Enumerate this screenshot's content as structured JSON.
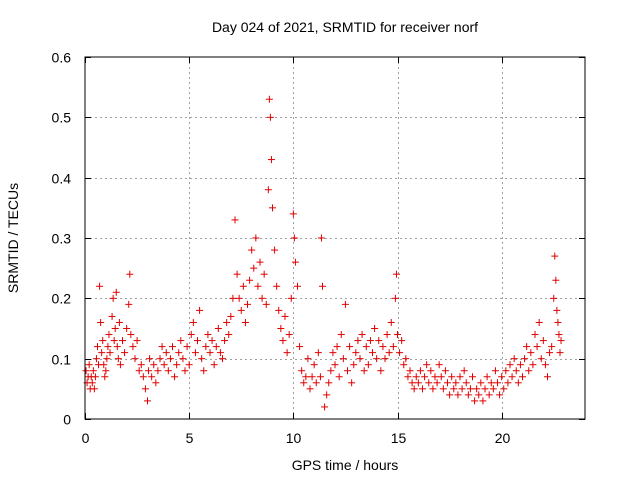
{
  "chart_data": {
    "type": "scatter",
    "title": "Day 024 of 2021, SRMTID for receiver norf",
    "xlabel": "GPS time / hours",
    "ylabel": "SRMTID / TECUs",
    "xlim": [
      0,
      24
    ],
    "ylim": [
      0,
      0.6
    ],
    "x_ticks": [
      0,
      5,
      10,
      15,
      20
    ],
    "x_tick_labels": [
      "0",
      "5",
      "10",
      "15",
      "20"
    ],
    "y_ticks": [
      0,
      0.1,
      0.2,
      0.3,
      0.4,
      0.5,
      0.6
    ],
    "y_tick_labels": [
      "0",
      "0.1",
      "0.2",
      "0.3",
      "0.4",
      "0.5",
      "0.6"
    ],
    "grid": true,
    "marker": "plus",
    "series": [
      {
        "name": "SRMTID",
        "color": "#e00000",
        "points": [
          [
            0.05,
            0.08
          ],
          [
            0.1,
            0.06
          ],
          [
            0.15,
            0.07
          ],
          [
            0.2,
            0.09
          ],
          [
            0.25,
            0.05
          ],
          [
            0.3,
            0.07
          ],
          [
            0.35,
            0.06
          ],
          [
            0.4,
            0.08
          ],
          [
            0.45,
            0.05
          ],
          [
            0.5,
            0.07
          ],
          [
            0.55,
            0.1
          ],
          [
            0.6,
            0.12
          ],
          [
            0.65,
            0.09
          ],
          [
            0.7,
            0.22
          ],
          [
            0.75,
            0.16
          ],
          [
            0.8,
            0.11
          ],
          [
            0.85,
            0.13
          ],
          [
            0.9,
            0.09
          ],
          [
            0.95,
            0.07
          ],
          [
            1.0,
            0.08
          ],
          [
            1.05,
            0.1
          ],
          [
            1.1,
            0.12
          ],
          [
            1.15,
            0.14
          ],
          [
            1.2,
            0.11
          ],
          [
            1.3,
            0.17
          ],
          [
            1.35,
            0.2
          ],
          [
            1.4,
            0.13
          ],
          [
            1.45,
            0.15
          ],
          [
            1.5,
            0.21
          ],
          [
            1.55,
            0.12
          ],
          [
            1.6,
            0.1
          ],
          [
            1.65,
            0.16
          ],
          [
            1.7,
            0.09
          ],
          [
            1.8,
            0.13
          ],
          [
            1.9,
            0.11
          ],
          [
            2.0,
            0.15
          ],
          [
            2.1,
            0.19
          ],
          [
            2.15,
            0.24
          ],
          [
            2.2,
            0.14
          ],
          [
            2.3,
            0.12
          ],
          [
            2.4,
            0.1
          ],
          [
            2.5,
            0.13
          ],
          [
            2.6,
            0.08
          ],
          [
            2.7,
            0.09
          ],
          [
            2.8,
            0.07
          ],
          [
            2.9,
            0.05
          ],
          [
            3.0,
            0.03
          ],
          [
            3.05,
            0.08
          ],
          [
            3.1,
            0.1
          ],
          [
            3.2,
            0.07
          ],
          [
            3.3,
            0.09
          ],
          [
            3.4,
            0.06
          ],
          [
            3.5,
            0.08
          ],
          [
            3.6,
            0.1
          ],
          [
            3.7,
            0.12
          ],
          [
            3.8,
            0.09
          ],
          [
            3.9,
            0.11
          ],
          [
            4.0,
            0.08
          ],
          [
            4.1,
            0.1
          ],
          [
            4.2,
            0.12
          ],
          [
            4.3,
            0.07
          ],
          [
            4.4,
            0.09
          ],
          [
            4.5,
            0.11
          ],
          [
            4.6,
            0.13
          ],
          [
            4.7,
            0.1
          ],
          [
            4.8,
            0.08
          ],
          [
            4.9,
            0.12
          ],
          [
            5.0,
            0.09
          ],
          [
            5.1,
            0.14
          ],
          [
            5.2,
            0.16
          ],
          [
            5.3,
            0.11
          ],
          [
            5.4,
            0.13
          ],
          [
            5.5,
            0.18
          ],
          [
            5.6,
            0.1
          ],
          [
            5.7,
            0.08
          ],
          [
            5.8,
            0.12
          ],
          [
            5.9,
            0.14
          ],
          [
            6.0,
            0.11
          ],
          [
            6.1,
            0.13
          ],
          [
            6.2,
            0.09
          ],
          [
            6.3,
            0.12
          ],
          [
            6.4,
            0.15
          ],
          [
            6.5,
            0.11
          ],
          [
            6.6,
            0.1
          ],
          [
            6.7,
            0.13
          ],
          [
            6.8,
            0.16
          ],
          [
            6.9,
            0.14
          ],
          [
            7.0,
            0.17
          ],
          [
            7.1,
            0.2
          ],
          [
            7.2,
            0.33
          ],
          [
            7.3,
            0.24
          ],
          [
            7.4,
            0.2
          ],
          [
            7.5,
            0.18
          ],
          [
            7.6,
            0.22
          ],
          [
            7.7,
            0.16
          ],
          [
            7.8,
            0.19
          ],
          [
            7.9,
            0.23
          ],
          [
            8.0,
            0.28
          ],
          [
            8.1,
            0.25
          ],
          [
            8.2,
            0.3
          ],
          [
            8.3,
            0.22
          ],
          [
            8.4,
            0.26
          ],
          [
            8.5,
            0.2
          ],
          [
            8.6,
            0.24
          ],
          [
            8.7,
            0.19
          ],
          [
            8.8,
            0.38
          ],
          [
            8.85,
            0.53
          ],
          [
            8.9,
            0.5
          ],
          [
            8.95,
            0.43
          ],
          [
            9.0,
            0.35
          ],
          [
            9.1,
            0.28
          ],
          [
            9.2,
            0.22
          ],
          [
            9.3,
            0.18
          ],
          [
            9.4,
            0.15
          ],
          [
            9.5,
            0.13
          ],
          [
            9.6,
            0.17
          ],
          [
            9.7,
            0.11
          ],
          [
            9.8,
            0.14
          ],
          [
            9.9,
            0.2
          ],
          [
            10.0,
            0.34
          ],
          [
            10.05,
            0.3
          ],
          [
            10.1,
            0.26
          ],
          [
            10.2,
            0.22
          ],
          [
            10.3,
            0.12
          ],
          [
            10.4,
            0.08
          ],
          [
            10.5,
            0.06
          ],
          [
            10.6,
            0.07
          ],
          [
            10.7,
            0.1
          ],
          [
            10.8,
            0.05
          ],
          [
            10.9,
            0.07
          ],
          [
            11.0,
            0.09
          ],
          [
            11.1,
            0.06
          ],
          [
            11.2,
            0.11
          ],
          [
            11.3,
            0.07
          ],
          [
            11.35,
            0.3
          ],
          [
            11.4,
            0.22
          ],
          [
            11.5,
            0.02
          ],
          [
            11.6,
            0.04
          ],
          [
            11.7,
            0.06
          ],
          [
            11.8,
            0.08
          ],
          [
            11.9,
            0.11
          ],
          [
            12.0,
            0.09
          ],
          [
            12.1,
            0.12
          ],
          [
            12.2,
            0.07
          ],
          [
            12.3,
            0.14
          ],
          [
            12.4,
            0.1
          ],
          [
            12.5,
            0.19
          ],
          [
            12.6,
            0.08
          ],
          [
            12.7,
            0.12
          ],
          [
            12.8,
            0.06
          ],
          [
            12.9,
            0.09
          ],
          [
            13.0,
            0.11
          ],
          [
            13.1,
            0.13
          ],
          [
            13.2,
            0.1
          ],
          [
            13.3,
            0.14
          ],
          [
            13.4,
            0.08
          ],
          [
            13.5,
            0.12
          ],
          [
            13.6,
            0.09
          ],
          [
            13.7,
            0.13
          ],
          [
            13.8,
            0.11
          ],
          [
            13.9,
            0.15
          ],
          [
            14.0,
            0.1
          ],
          [
            14.1,
            0.13
          ],
          [
            14.2,
            0.08
          ],
          [
            14.3,
            0.12
          ],
          [
            14.4,
            0.1
          ],
          [
            14.5,
            0.14
          ],
          [
            14.6,
            0.11
          ],
          [
            14.7,
            0.16
          ],
          [
            14.8,
            0.12
          ],
          [
            14.9,
            0.2
          ],
          [
            14.95,
            0.24
          ],
          [
            15.0,
            0.14
          ],
          [
            15.1,
            0.11
          ],
          [
            15.2,
            0.13
          ],
          [
            15.3,
            0.09
          ],
          [
            15.4,
            0.1
          ],
          [
            15.5,
            0.07
          ],
          [
            15.6,
            0.08
          ],
          [
            15.7,
            0.06
          ],
          [
            15.8,
            0.05
          ],
          [
            15.9,
            0.07
          ],
          [
            16.0,
            0.06
          ],
          [
            16.1,
            0.08
          ],
          [
            16.2,
            0.05
          ],
          [
            16.3,
            0.07
          ],
          [
            16.4,
            0.09
          ],
          [
            16.5,
            0.06
          ],
          [
            16.6,
            0.08
          ],
          [
            16.7,
            0.05
          ],
          [
            16.8,
            0.07
          ],
          [
            16.9,
            0.06
          ],
          [
            17.0,
            0.09
          ],
          [
            17.1,
            0.07
          ],
          [
            17.2,
            0.05
          ],
          [
            17.3,
            0.08
          ],
          [
            17.4,
            0.06
          ],
          [
            17.5,
            0.04
          ],
          [
            17.6,
            0.07
          ],
          [
            17.7,
            0.05
          ],
          [
            17.8,
            0.06
          ],
          [
            17.9,
            0.04
          ],
          [
            18.0,
            0.07
          ],
          [
            18.1,
            0.05
          ],
          [
            18.2,
            0.08
          ],
          [
            18.3,
            0.06
          ],
          [
            18.4,
            0.04
          ],
          [
            18.5,
            0.05
          ],
          [
            18.6,
            0.07
          ],
          [
            18.7,
            0.03
          ],
          [
            18.8,
            0.05
          ],
          [
            18.9,
            0.04
          ],
          [
            19.0,
            0.06
          ],
          [
            19.1,
            0.03
          ],
          [
            19.2,
            0.05
          ],
          [
            19.3,
            0.07
          ],
          [
            19.4,
            0.04
          ],
          [
            19.5,
            0.06
          ],
          [
            19.6,
            0.05
          ],
          [
            19.7,
            0.08
          ],
          [
            19.8,
            0.06
          ],
          [
            19.9,
            0.04
          ],
          [
            20.0,
            0.07
          ],
          [
            20.1,
            0.05
          ],
          [
            20.2,
            0.08
          ],
          [
            20.3,
            0.06
          ],
          [
            20.4,
            0.09
          ],
          [
            20.5,
            0.07
          ],
          [
            20.6,
            0.1
          ],
          [
            20.7,
            0.08
          ],
          [
            20.8,
            0.06
          ],
          [
            20.9,
            0.09
          ],
          [
            21.0,
            0.07
          ],
          [
            21.1,
            0.1
          ],
          [
            21.2,
            0.12
          ],
          [
            21.3,
            0.08
          ],
          [
            21.4,
            0.11
          ],
          [
            21.5,
            0.09
          ],
          [
            21.6,
            0.14
          ],
          [
            21.7,
            0.12
          ],
          [
            21.8,
            0.16
          ],
          [
            21.9,
            0.1
          ],
          [
            22.0,
            0.13
          ],
          [
            22.1,
            0.09
          ],
          [
            22.2,
            0.07
          ],
          [
            22.3,
            0.11
          ],
          [
            22.4,
            0.12
          ],
          [
            22.5,
            0.2
          ],
          [
            22.55,
            0.27
          ],
          [
            22.6,
            0.23
          ],
          [
            22.65,
            0.18
          ],
          [
            22.7,
            0.16
          ],
          [
            22.75,
            0.14
          ],
          [
            22.8,
            0.11
          ],
          [
            22.85,
            0.13
          ]
        ]
      }
    ]
  }
}
